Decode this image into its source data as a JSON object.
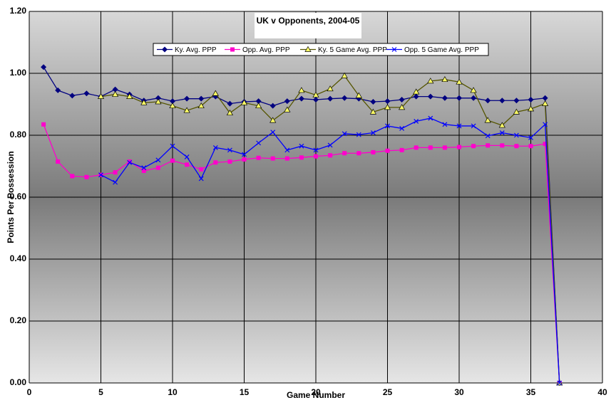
{
  "chart_data": {
    "type": "line",
    "title": "UK v Opponents, 2004-05",
    "x_label": "Game Number",
    "y_label": "Points Per Possession",
    "x": [
      1,
      2,
      3,
      4,
      5,
      6,
      7,
      8,
      9,
      10,
      11,
      12,
      13,
      14,
      15,
      16,
      17,
      18,
      19,
      20,
      21,
      22,
      23,
      24,
      25,
      26,
      27,
      28,
      29,
      30,
      31,
      32,
      33,
      34,
      35,
      36,
      37
    ],
    "series": [
      {
        "name": "Ky. Avg. PPP",
        "color": "#000080",
        "marker": "diamond",
        "values": [
          1.02,
          0.945,
          0.928,
          0.935,
          0.925,
          0.948,
          0.932,
          0.912,
          0.92,
          0.91,
          0.918,
          0.918,
          0.925,
          0.902,
          0.908,
          0.91,
          0.895,
          0.91,
          0.918,
          0.915,
          0.918,
          0.92,
          0.918,
          0.908,
          0.91,
          0.915,
          0.925,
          0.925,
          0.92,
          0.92,
          0.92,
          0.912,
          0.912,
          0.912,
          0.915,
          0.92,
          0
        ]
      },
      {
        "name": "Opp. Avg. PPP",
        "color": "#ff00cc",
        "marker": "square",
        "values": [
          0.835,
          0.715,
          0.668,
          0.665,
          0.672,
          0.68,
          0.715,
          0.685,
          0.695,
          0.718,
          0.705,
          0.69,
          0.712,
          0.715,
          0.722,
          0.727,
          0.725,
          0.725,
          0.728,
          0.732,
          0.735,
          0.742,
          0.742,
          0.745,
          0.75,
          0.752,
          0.76,
          0.76,
          0.76,
          0.762,
          0.765,
          0.767,
          0.767,
          0.765,
          0.765,
          0.772,
          0
        ]
      },
      {
        "name": "Ky. 5 Game Avg. PPP",
        "color": "#555500",
        "marker": "triangle",
        "values": [
          null,
          null,
          null,
          null,
          0.925,
          0.932,
          0.925,
          0.905,
          0.908,
          0.895,
          0.88,
          0.895,
          0.935,
          0.872,
          0.905,
          0.895,
          0.848,
          0.882,
          0.945,
          0.93,
          0.95,
          0.992,
          0.928,
          0.875,
          0.89,
          0.89,
          0.94,
          0.975,
          0.98,
          0.972,
          0.945,
          0.848,
          0.832,
          0.875,
          0.885,
          0.902,
          0
        ]
      },
      {
        "name": "Opp. 5 Game Avg. PPP",
        "color": "#0000ff",
        "marker": "x",
        "values": [
          null,
          null,
          null,
          null,
          0.672,
          0.648,
          0.712,
          0.695,
          0.72,
          0.765,
          0.73,
          0.66,
          0.76,
          0.752,
          0.738,
          0.775,
          0.81,
          0.752,
          0.765,
          0.752,
          0.768,
          0.805,
          0.802,
          0.808,
          0.83,
          0.822,
          0.845,
          0.855,
          0.835,
          0.83,
          0.83,
          0.798,
          0.808,
          0.8,
          0.792,
          0.835,
          0
        ]
      }
    ],
    "xlim": [
      0,
      40
    ],
    "xticks": [
      0,
      5,
      10,
      15,
      20,
      25,
      30,
      35,
      40
    ],
    "ylim": [
      0,
      1.2
    ],
    "yticks": [
      {
        "value": 0,
        "label": "0.00"
      },
      {
        "value": 0.2,
        "label": "0.20"
      },
      {
        "value": 0.4,
        "label": "0.40"
      },
      {
        "value": 0.6,
        "label": "0.60"
      },
      {
        "value": 0.8,
        "label": "0.80"
      },
      {
        "value": 1,
        "label": "1.00"
      },
      {
        "value": 1.2,
        "label": "1.20"
      }
    ],
    "grid": true
  }
}
